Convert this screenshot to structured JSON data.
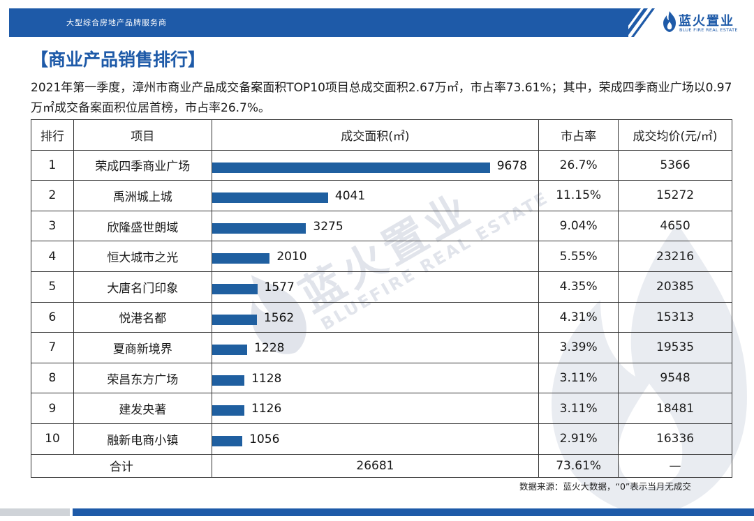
{
  "header": {
    "tagline": "大型综合房地产品牌服务商",
    "logo_cn": "蓝火置业",
    "logo_en": "BLUE FIRE REAL ESTATE"
  },
  "title": "【商业产品销售排行】",
  "summary": "2021年第一季度，漳州市商业产品成交备案面积TOP10项目总成交面积2.67万㎡，市占率73.61%；其中，荣成四季商业广场以0.97万㎡成交备案面积位居首榜，市占率26.7%。",
  "watermark": {
    "cn": "蓝火置业",
    "en": "BLUEFIRE REAL ESTATE"
  },
  "table": {
    "headers": [
      "排行",
      "项目",
      "成交面积(㎡)",
      "市占率",
      "成交均价(元/㎡)"
    ],
    "rows": [
      {
        "rank": "1",
        "project": "荣成四季商业广场",
        "area": "9678",
        "share": "26.7%",
        "price": "5366"
      },
      {
        "rank": "2",
        "project": "禹洲城上城",
        "area": "4041",
        "share": "11.15%",
        "price": "15272"
      },
      {
        "rank": "3",
        "project": "欣隆盛世朗域",
        "area": "3275",
        "share": "9.04%",
        "price": "4650"
      },
      {
        "rank": "4",
        "project": "恒大城市之光",
        "area": "2010",
        "share": "5.55%",
        "price": "23216"
      },
      {
        "rank": "5",
        "project": "大唐名门印象",
        "area": "1577",
        "share": "4.35%",
        "price": "20385"
      },
      {
        "rank": "6",
        "project": "悦港名都",
        "area": "1562",
        "share": "4.31%",
        "price": "15313"
      },
      {
        "rank": "7",
        "project": "夏商新境界",
        "area": "1228",
        "share": "3.39%",
        "price": "19535"
      },
      {
        "rank": "8",
        "project": "荣昌东方广场",
        "area": "1128",
        "share": "3.11%",
        "price": "9548"
      },
      {
        "rank": "9",
        "project": "建发央著",
        "area": "1126",
        "share": "3.11%",
        "price": "18481"
      },
      {
        "rank": "10",
        "project": "融新电商小镇",
        "area": "1056",
        "share": "2.91%",
        "price": "16336"
      }
    ],
    "total": {
      "label": "合计",
      "area": "26681",
      "share": "73.61%",
      "price": "—"
    }
  },
  "chart_data": {
    "type": "bar",
    "categories": [
      "荣成四季商业广场",
      "禹洲城上城",
      "欣隆盛世朗域",
      "恒大城市之光",
      "大唐名门印象",
      "悦港名都",
      "夏商新境界",
      "荣昌东方广场",
      "建发央著",
      "融新电商小镇"
    ],
    "values": [
      9678,
      4041,
      3275,
      2010,
      1577,
      1562,
      1228,
      1128,
      1126,
      1056
    ],
    "bar_color": "#1f5fa0"
  },
  "source": "数据来源：蓝火大数据，“0”表示当月无成交",
  "colors": {
    "brand": "#1e5aa8",
    "bar": "#1f5fa0"
  }
}
